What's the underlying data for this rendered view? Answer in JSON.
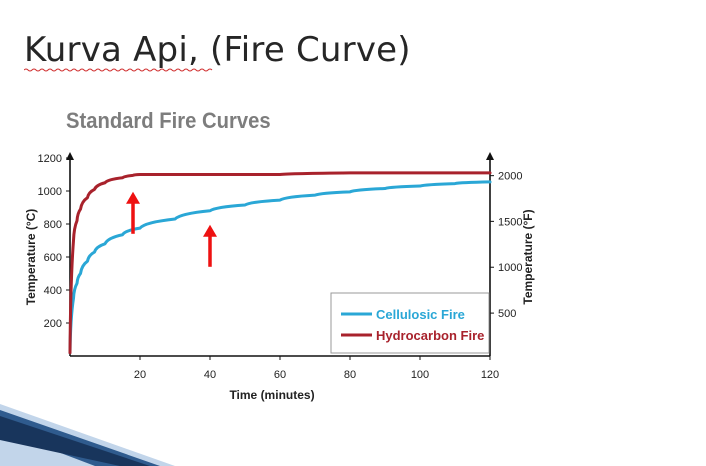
{
  "slide": {
    "title": "Kurva Api, (Fire Curve)"
  },
  "colors": {
    "cellulosic": "#2aa7d6",
    "hydrocarbon": "#a8222c",
    "arrow": "#ee1111",
    "chart_title": "#7d7d7d",
    "decor_dark": "#18355c",
    "decor_light": "#8fb3d9"
  },
  "chart_data": {
    "type": "line",
    "title": "Standard Fire Curves",
    "xlabel": "Time (minutes)",
    "ylabel": "Temperature (°C)",
    "ylabel_right": "Temperature (°F)",
    "xlim": [
      0,
      120
    ],
    "ylim": [
      0,
      1200
    ],
    "x_ticks": [
      "20",
      "40",
      "60",
      "80",
      "100",
      "120"
    ],
    "y_ticks": [
      "200",
      "400",
      "600",
      "800",
      "1000",
      "1200"
    ],
    "y_ticks_right": [
      "500",
      "1000",
      "1500",
      "2000"
    ],
    "y_right_values_c": [
      260,
      538,
      816,
      1093
    ],
    "grid": false,
    "legend_position": "bottom-right",
    "series": [
      {
        "name": "Cellulosic Fire",
        "x": [
          0,
          1,
          2,
          3,
          5,
          7,
          10,
          15,
          20,
          30,
          40,
          50,
          60,
          70,
          80,
          90,
          100,
          110,
          120
        ],
        "y": [
          20,
          350,
          440,
          500,
          575,
          630,
          680,
          735,
          775,
          830,
          880,
          915,
          945,
          975,
          995,
          1015,
          1030,
          1045,
          1055
        ]
      },
      {
        "name": "Hydrocarbon Fire",
        "x": [
          0,
          1,
          2,
          3,
          5,
          7,
          10,
          15,
          18,
          20,
          30,
          40,
          60,
          80,
          100,
          120
        ],
        "y": [
          20,
          700,
          820,
          890,
          960,
          1010,
          1050,
          1080,
          1095,
          1100,
          1100,
          1100,
          1100,
          1110,
          1110,
          1110
        ]
      }
    ],
    "annotations": [
      {
        "type": "arrow",
        "x": 18,
        "y": 1080
      },
      {
        "type": "arrow",
        "x": 40,
        "y": 880
      }
    ]
  }
}
